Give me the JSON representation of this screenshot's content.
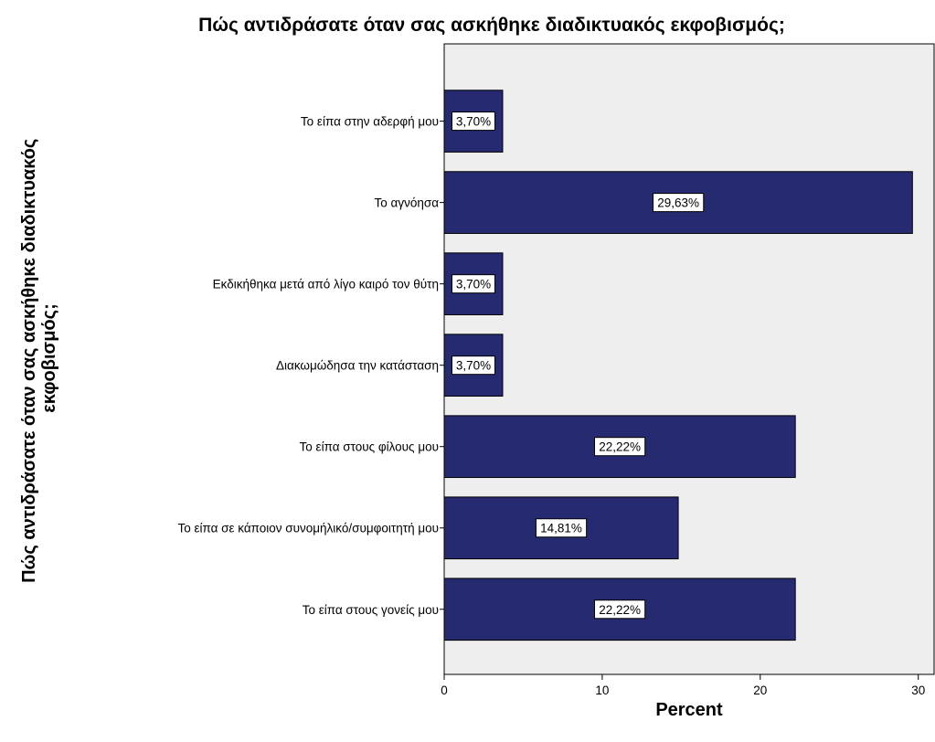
{
  "chart_data": {
    "type": "bar",
    "orientation": "horizontal",
    "title": "Πώς αντιδράσατε όταν σας ασκήθηκε διαδικτυακός εκφοβισμός;",
    "xlabel": "Percent",
    "ylabel_lines": [
      "Πώς αντιδράσατε όταν σας ασκήθηκε διαδικτυακός",
      "εκφοβισμός;"
    ],
    "categories": [
      "Το είπα στην αδερφή μου",
      "Το αγνόησα",
      "Εκδικήθηκα μετά από λίγο καιρό τον θύτη",
      "Διακωμώδησα την κατάσταση",
      "Το είπα στους φίλους μου",
      "Το είπα σε κάποιον συνομήλικό/συμφοιτητή μου",
      "Το είπα στους γονείς μου"
    ],
    "values": [
      3.7,
      29.63,
      3.7,
      3.7,
      22.22,
      14.81,
      22.22
    ],
    "data_labels": [
      "3,70%",
      "29,63%",
      "3,70%",
      "3,70%",
      "22,22%",
      "14,81%",
      "22,22%"
    ],
    "xlim": [
      0,
      31
    ],
    "xticks": [
      0,
      10,
      20,
      30
    ],
    "xtick_labels": [
      "0",
      "10",
      "20",
      "30"
    ],
    "grid": false,
    "colors": {
      "bar": "#262A71",
      "plot_background": "#EEEEEE",
      "label_box": "#FFFFFF"
    }
  }
}
